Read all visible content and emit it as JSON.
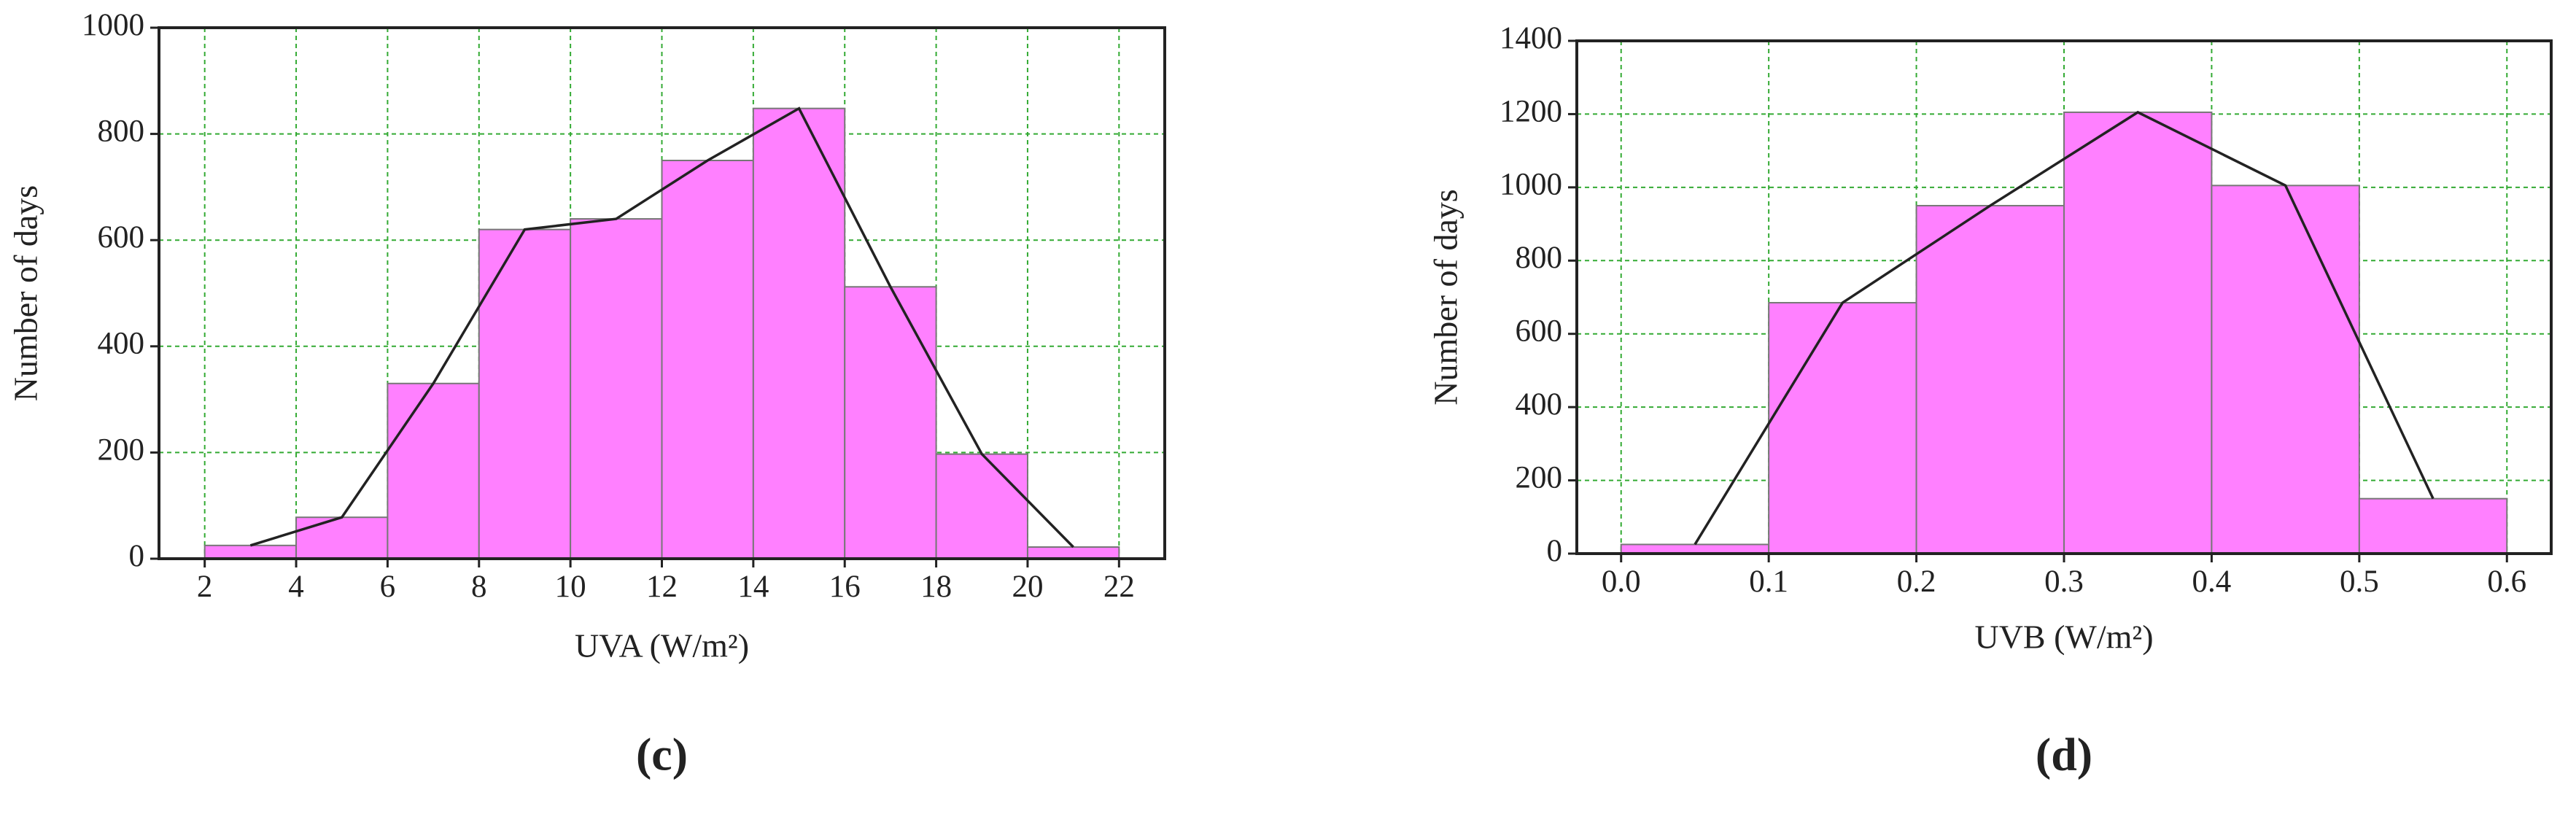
{
  "chart_data": [
    {
      "type": "histogram",
      "panel": "(c)",
      "xlabel": "UVA (W/m²)",
      "ylabel": "Number of days",
      "bins": [
        2,
        4,
        6,
        8,
        10,
        12,
        14,
        16,
        18,
        20,
        22
      ],
      "values": [
        25,
        78,
        330,
        620,
        640,
        750,
        848,
        512,
        197,
        22
      ],
      "color": "#ff80ff",
      "line_color": "#222222",
      "polygon": true,
      "xlim": [
        1,
        23
      ],
      "xticks": [
        2,
        4,
        6,
        8,
        10,
        12,
        14,
        16,
        18,
        20,
        22
      ],
      "ylim": [
        0,
        1000
      ],
      "yticks": [
        0,
        200,
        400,
        600,
        800,
        1000
      ],
      "grid": true
    },
    {
      "type": "histogram",
      "panel": "(d)",
      "xlabel": "UVB (W/m²)",
      "ylabel": "Number of days",
      "bins": [
        0,
        0.1,
        0.2,
        0.3,
        0.4,
        0.5,
        0.6
      ],
      "values": [
        25,
        685,
        950,
        1205,
        1005,
        150
      ],
      "color": "#ff80ff",
      "line_color": "#222222",
      "polygon": true,
      "xlim": [
        -0.03,
        0.63
      ],
      "xticks": [
        {
          "value": 0,
          "label": "0.0"
        },
        0.1,
        0.2,
        0.3,
        0.4,
        0.5,
        0.6
      ],
      "ylim": [
        0,
        1400
      ],
      "yticks": [
        0,
        200,
        400,
        600,
        800,
        1000,
        1200,
        1400
      ],
      "grid": true
    }
  ]
}
